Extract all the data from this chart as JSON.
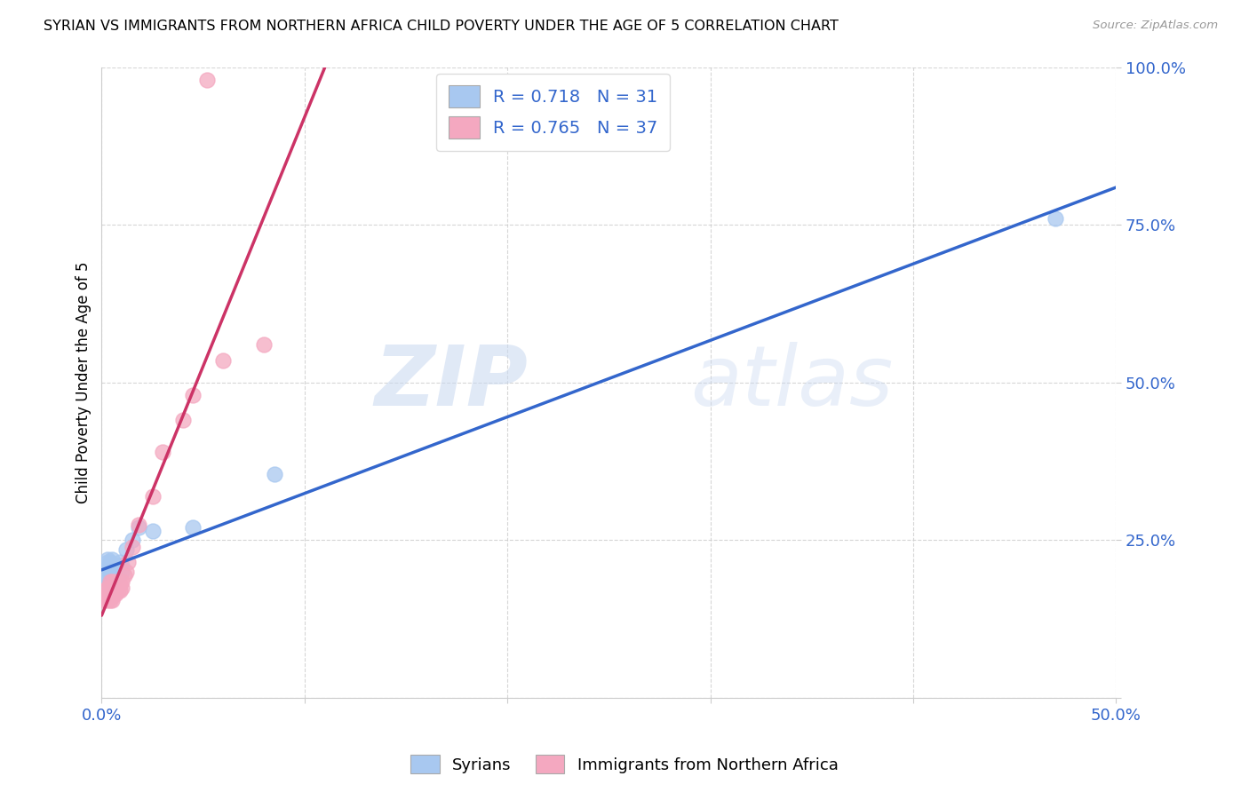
{
  "title": "SYRIAN VS IMMIGRANTS FROM NORTHERN AFRICA CHILD POVERTY UNDER THE AGE OF 5 CORRELATION CHART",
  "source": "Source: ZipAtlas.com",
  "ylabel": "Child Poverty Under the Age of 5",
  "xlim": [
    0.0,
    0.5
  ],
  "ylim": [
    0.0,
    1.0
  ],
  "blue_R": 0.718,
  "blue_N": 31,
  "pink_R": 0.765,
  "pink_N": 37,
  "blue_color": "#A8C8F0",
  "pink_color": "#F4A8C0",
  "blue_line_color": "#3366CC",
  "pink_line_color": "#CC3366",
  "legend_label_blue": "Syrians",
  "legend_label_pink": "Immigrants from Northern Africa",
  "watermark_zip": "ZIP",
  "watermark_atlas": "atlas",
  "syrians_x": [
    0.001,
    0.002,
    0.002,
    0.003,
    0.003,
    0.003,
    0.004,
    0.004,
    0.004,
    0.004,
    0.005,
    0.005,
    0.005,
    0.005,
    0.006,
    0.006,
    0.006,
    0.007,
    0.007,
    0.008,
    0.008,
    0.009,
    0.01,
    0.01,
    0.012,
    0.015,
    0.018,
    0.025,
    0.045,
    0.085,
    0.47
  ],
  "syrians_y": [
    0.175,
    0.185,
    0.195,
    0.205,
    0.215,
    0.22,
    0.185,
    0.195,
    0.205,
    0.215,
    0.195,
    0.2,
    0.21,
    0.22,
    0.195,
    0.2,
    0.21,
    0.195,
    0.205,
    0.195,
    0.21,
    0.215,
    0.2,
    0.21,
    0.235,
    0.25,
    0.27,
    0.265,
    0.27,
    0.355,
    0.76
  ],
  "northern_africa_x": [
    0.001,
    0.002,
    0.002,
    0.003,
    0.003,
    0.003,
    0.004,
    0.004,
    0.004,
    0.004,
    0.005,
    0.005,
    0.005,
    0.005,
    0.006,
    0.006,
    0.007,
    0.007,
    0.007,
    0.008,
    0.008,
    0.009,
    0.009,
    0.01,
    0.01,
    0.011,
    0.012,
    0.013,
    0.015,
    0.018,
    0.025,
    0.03,
    0.04,
    0.045,
    0.06,
    0.08,
    0.052
  ],
  "northern_africa_y": [
    0.155,
    0.16,
    0.17,
    0.155,
    0.165,
    0.175,
    0.155,
    0.165,
    0.175,
    0.185,
    0.155,
    0.16,
    0.175,
    0.185,
    0.165,
    0.175,
    0.165,
    0.175,
    0.185,
    0.17,
    0.18,
    0.17,
    0.18,
    0.175,
    0.185,
    0.195,
    0.2,
    0.215,
    0.24,
    0.275,
    0.32,
    0.39,
    0.44,
    0.48,
    0.535,
    0.56,
    0.98
  ]
}
